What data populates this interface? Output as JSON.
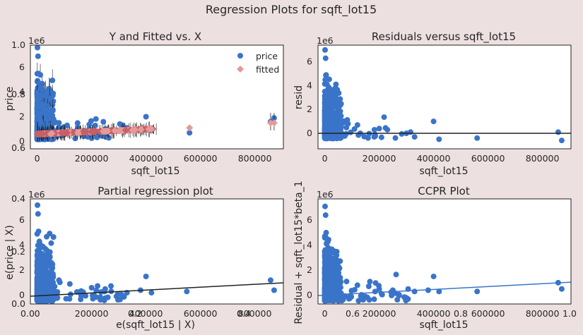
{
  "suptitle": "Regression Plots for sqft_lot15",
  "colors": {
    "background": "#ede0e0",
    "price": "#3a74c9",
    "fitted": "#e59a9a",
    "fitted_dense": "#c85f66",
    "line_black": "#222222",
    "line_blue": "#3a74c9"
  },
  "overlay_ticks": {
    "y": [
      "1.0",
      "0.8",
      "0.6",
      "0.4",
      "0.2",
      "0.0"
    ],
    "x": [
      "0.0",
      "0.2",
      "0.4",
      "0.6",
      "0.8",
      "1.0"
    ]
  },
  "chart_data": [
    {
      "id": "fitted_vs_x",
      "type": "scatter",
      "title": "Y and Fitted vs. X",
      "xlabel": "sqft_lot15",
      "ylabel": "price",
      "offset_label": "1e6",
      "xlim": [
        -25000,
        905000
      ],
      "ylim": [
        -600000,
        7800000
      ],
      "xticks": [
        "0",
        "200000",
        "400000",
        "600000",
        "800000"
      ],
      "xtick_values": [
        0,
        200000,
        400000,
        600000,
        800000
      ],
      "yticks": [
        "0",
        "2",
        "4",
        "6"
      ],
      "ytick_values": [
        0,
        2000000,
        4000000,
        6000000
      ],
      "legend": {
        "position": "top-right",
        "items": [
          "price",
          "fitted"
        ]
      },
      "series": [
        {
          "name": "price",
          "marker": "circle",
          "points": [
            [
              1000,
              7600000
            ],
            [
              3000,
              6900000
            ],
            [
              5000,
              5500000
            ],
            [
              8000,
              4700000
            ],
            [
              12000,
              4300000
            ],
            [
              16000,
              3800000
            ],
            [
              4000,
              3300000
            ],
            [
              20000,
              3000000
            ],
            [
              26000,
              2600000
            ],
            [
              30000,
              2300000
            ],
            [
              45000,
              2000000
            ],
            [
              60000,
              1800000
            ],
            [
              80000,
              1500000
            ],
            [
              110000,
              1300000
            ],
            [
              150000,
              1100000
            ],
            [
              200000,
              900000
            ],
            [
              250000,
              1000000
            ],
            [
              300000,
              900000
            ],
            [
              330000,
              1100000
            ],
            [
              400000,
              2000000
            ],
            [
              420000,
              900000
            ],
            [
              560000,
              700000
            ],
            [
              858000,
              1600000
            ],
            [
              871000,
              1900000
            ]
          ]
        },
        {
          "name": "fitted",
          "marker": "diamond",
          "points": [
            [
              50000,
              600000
            ],
            [
              150000,
              700000
            ],
            [
              250000,
              800000
            ],
            [
              300000,
              850000
            ],
            [
              350000,
              900000
            ],
            [
              420000,
              1000000
            ],
            [
              560000,
              1100000
            ],
            [
              858000,
              1500000
            ],
            [
              871000,
              1500000
            ]
          ]
        }
      ]
    },
    {
      "id": "residuals",
      "type": "scatter",
      "title": "Residuals versus sqft_lot15",
      "xlabel": "sqft_lot15",
      "ylabel": "resid",
      "offset_label": "1e6",
      "xlim": [
        -25000,
        905000
      ],
      "ylim": [
        -1300000,
        7400000
      ],
      "xticks": [
        "0",
        "200000",
        "400000",
        "600000",
        "800000"
      ],
      "xtick_values": [
        0,
        200000,
        400000,
        600000,
        800000
      ],
      "yticks": [
        "0",
        "2",
        "4",
        "6"
      ],
      "ytick_values": [
        0,
        2000000,
        4000000,
        6000000
      ],
      "hline": 0,
      "series": [
        {
          "name": "resid",
          "points": [
            [
              1000,
              7000000
            ],
            [
              3000,
              6300000
            ],
            [
              5000,
              4900000
            ],
            [
              8000,
              4100000
            ],
            [
              12000,
              3700000
            ],
            [
              16000,
              3200000
            ],
            [
              20000,
              2600000
            ],
            [
              30000,
              1800000
            ],
            [
              50000,
              1300000
            ],
            [
              80000,
              1000000
            ],
            [
              120000,
              700000
            ],
            [
              200000,
              400000
            ],
            [
              230000,
              300000
            ],
            [
              300000,
              0
            ],
            [
              330000,
              -300000
            ],
            [
              400000,
              1000000
            ],
            [
              420000,
              -500000
            ],
            [
              560000,
              -400000
            ],
            [
              858000,
              100000
            ],
            [
              871000,
              -600000
            ]
          ]
        }
      ]
    },
    {
      "id": "partial_regression",
      "type": "scatter",
      "title": "Partial regression plot",
      "xlabel": "e(sqft_lot15 | X)",
      "ylabel": "e(price | X)",
      "offset_label": "1e6",
      "xlim": [
        -25000,
        905000
      ],
      "ylim": [
        -700000,
        7700000
      ],
      "xticks": [
        "0",
        "200000",
        "400000",
        "600000",
        "800000"
      ],
      "xtick_values": [
        0,
        200000,
        400000,
        600000,
        800000
      ],
      "yticks": [
        "0",
        "2",
        "4",
        "6"
      ],
      "ytick_values": [
        0,
        2000000,
        4000000,
        6000000
      ],
      "regression_line": {
        "intercept": -50000,
        "slope": 1.15
      },
      "series": [
        {
          "name": "resid",
          "points": [
            [
              1000,
              7200000
            ],
            [
              3000,
              6500000
            ],
            [
              5000,
              5100000
            ],
            [
              8000,
              4300000
            ],
            [
              12000,
              3800000
            ],
            [
              16000,
              3300000
            ],
            [
              20000,
              2800000
            ],
            [
              30000,
              2000000
            ],
            [
              50000,
              1400000
            ],
            [
              80000,
              1200000
            ],
            [
              120000,
              900000
            ],
            [
              200000,
              600000
            ],
            [
              250000,
              500000
            ],
            [
              330000,
              200000
            ],
            [
              380000,
              400000
            ],
            [
              400000,
              1500000
            ],
            [
              420000,
              200000
            ],
            [
              550000,
              300000
            ],
            [
              858000,
              1200000
            ],
            [
              871000,
              400000
            ]
          ]
        }
      ]
    },
    {
      "id": "ccpr",
      "type": "scatter",
      "title": "CCPR Plot",
      "xlabel": "sqft_lot15",
      "ylabel": "Residual + sqft_lot15*beta_1",
      "offset_label": "1e6",
      "xlim": [
        -25000,
        905000
      ],
      "ylim": [
        -700000,
        7700000
      ],
      "xticks": [
        "0",
        "200000",
        "400000",
        "600000",
        "800000"
      ],
      "xtick_values": [
        0,
        200000,
        400000,
        600000,
        800000
      ],
      "yticks": [
        "0",
        "2",
        "4",
        "6"
      ],
      "ytick_values": [
        0,
        2000000,
        4000000,
        6000000
      ],
      "regression_line": {
        "intercept": 0,
        "slope": 1.15
      },
      "series": [
        {
          "name": "ccpr",
          "points": [
            [
              1000,
              7100000
            ],
            [
              3000,
              6400000
            ],
            [
              5000,
              5000000
            ],
            [
              8000,
              4200000
            ],
            [
              12000,
              3800000
            ],
            [
              16000,
              3300000
            ],
            [
              20000,
              2700000
            ],
            [
              30000,
              1900000
            ],
            [
              50000,
              1400000
            ],
            [
              80000,
              1100000
            ],
            [
              120000,
              800000
            ],
            [
              200000,
              500000
            ],
            [
              250000,
              400000
            ],
            [
              330000,
              300000
            ],
            [
              380000,
              400000
            ],
            [
              400000,
              1500000
            ],
            [
              420000,
              300000
            ],
            [
              560000,
              300000
            ],
            [
              858000,
              1000000
            ],
            [
              871000,
              500000
            ]
          ]
        }
      ]
    }
  ]
}
